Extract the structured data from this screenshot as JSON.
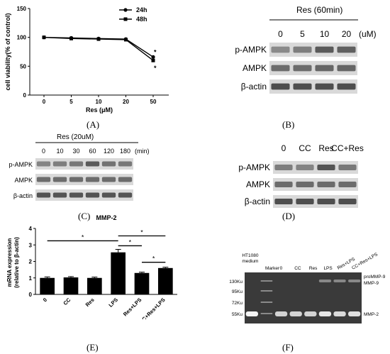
{
  "panel_labels": [
    "(A)",
    "(B)",
    "(C)",
    "(D)",
    "(E)",
    "(F)"
  ],
  "chart_data": [
    {
      "type": "line",
      "ylabel": "cell viability(% of control)",
      "xlabel": "Res (μM)",
      "categories": [
        "0",
        "5",
        "10",
        "20",
        "50"
      ],
      "ylim": [
        0,
        150
      ],
      "yticks": [
        "0",
        "50",
        "100",
        "150"
      ],
      "series": [
        {
          "name": "24h",
          "values": [
            100,
            99,
            98,
            97,
            66
          ],
          "marker": "circle"
        },
        {
          "name": "48h",
          "values": [
            100,
            98,
            97,
            96,
            60
          ],
          "marker": "square"
        }
      ],
      "annotations": [
        "*",
        "*"
      ],
      "legend": "top-right"
    },
    {
      "type": "bar",
      "title": "MMP-2",
      "ylabel": "mRNA expression",
      "ylabel2": "(relative to β-actin)",
      "categories": [
        "0",
        "CC",
        "Res",
        "LPS",
        "Res+LPS",
        "CC+Res+LPS"
      ],
      "values": [
        1.0,
        1.03,
        1.0,
        2.55,
        1.3,
        1.6
      ],
      "errors": [
        0.06,
        0.05,
        0.05,
        0.18,
        0.05,
        0.05
      ],
      "ylim": [
        0,
        4
      ],
      "yticks": [
        "0",
        "1",
        "2",
        "3",
        "4"
      ],
      "significance": [
        "*",
        "*",
        "*",
        "*"
      ]
    }
  ],
  "blotB": {
    "title": "Res (60min)",
    "lanes": [
      "0",
      "5",
      "10",
      "20"
    ],
    "unit": "(uM)",
    "rows": [
      "p-AMPK",
      "AMPK",
      "β-actin"
    ]
  },
  "blotC": {
    "title": "Res (20uM)",
    "lanes": [
      "0",
      "10",
      "30",
      "60",
      "120",
      "180"
    ],
    "unit": "(min)",
    "rows": [
      "p-AMPK",
      "AMPK",
      "β-actin"
    ]
  },
  "blotD": {
    "lanes": [
      "0",
      "CC",
      "Res",
      "CC+Res"
    ],
    "rows": [
      "p-AMPK",
      "AMPK",
      "β-actin"
    ]
  },
  "gelF": {
    "lanes": [
      "HT1080 medium",
      "Marker",
      "0",
      "CC",
      "Res",
      "LPS",
      "Res+LPS",
      "CC+Res+LPS"
    ],
    "lane_top1": "HT1080",
    "lane_top2": "medium",
    "markers": [
      "130Ku",
      "95Ku",
      "72Ku",
      "55Ku"
    ],
    "bands": [
      "proMMP-9",
      "MMP-9",
      "MMP-2"
    ]
  }
}
